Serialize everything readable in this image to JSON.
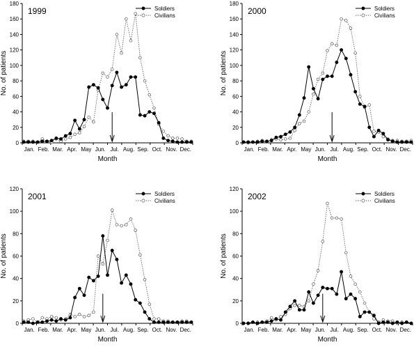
{
  "chart_data": [
    {
      "type": "line",
      "title": "1999",
      "xlabel": "Month",
      "ylabel": "No. of patients",
      "ylim": [
        0,
        180
      ],
      "yticks": [
        0,
        20,
        40,
        60,
        80,
        100,
        120,
        140,
        160,
        180
      ],
      "month_labels": [
        "Jan.",
        "Feb.",
        "Mar.",
        "Apr.",
        "May",
        "Jun.",
        "Jul.",
        "Aug.",
        "Sep.",
        "Oct.",
        "Nov.",
        "Dec."
      ],
      "grid": false,
      "legend_position": "top-right",
      "arrow_at_week": 19,
      "series": [
        {
          "name": "Soldiers",
          "style": "solid-filled",
          "values": [
            1,
            1,
            1,
            1,
            2,
            2,
            3,
            6,
            5,
            9,
            12,
            29,
            18,
            30,
            72,
            75,
            71,
            56,
            45,
            74,
            91,
            72,
            75,
            85,
            85,
            36,
            35,
            40,
            38,
            26,
            6,
            3,
            2,
            1,
            1,
            1,
            1
          ]
        },
        {
          "name": "Civilians",
          "style": "dotted-open",
          "values": [
            2,
            2,
            2,
            1,
            5,
            2,
            1,
            5,
            2,
            5,
            7,
            11,
            13,
            21,
            33,
            27,
            68,
            90,
            85,
            95,
            140,
            116,
            160,
            132,
            167,
            110,
            80,
            62,
            45,
            24,
            15,
            9,
            6,
            6,
            5,
            2,
            2
          ]
        }
      ]
    },
    {
      "type": "line",
      "title": "2000",
      "xlabel": "Month",
      "ylabel": "No. of patients",
      "ylim": [
        0,
        180
      ],
      "yticks": [
        0,
        20,
        40,
        60,
        80,
        100,
        120,
        140,
        160,
        180
      ],
      "month_labels": [
        "Jan.",
        "Feb.",
        "Mar.",
        "Apr.",
        "May",
        "Jun.",
        "Jul.",
        "Aug.",
        "Sep.",
        "Oct.",
        "Nov.",
        "Dec."
      ],
      "grid": false,
      "legend_position": "top-right",
      "arrow_at_week": 19,
      "series": [
        {
          "name": "Soldiers",
          "style": "solid-filled",
          "values": [
            1,
            1,
            1,
            1,
            2,
            2,
            3,
            7,
            8,
            11,
            14,
            20,
            36,
            58,
            98,
            70,
            57,
            82,
            86,
            86,
            104,
            120,
            109,
            88,
            66,
            50,
            47,
            20,
            8,
            16,
            12,
            4,
            2,
            1,
            1,
            1,
            1
          ]
        },
        {
          "name": "Civilians",
          "style": "dotted-open",
          "values": [
            1,
            0,
            1,
            2,
            3,
            1,
            4,
            5,
            4,
            5,
            6,
            16,
            25,
            28,
            40,
            63,
            82,
            90,
            119,
            128,
            126,
            160,
            158,
            148,
            116,
            60,
            46,
            49,
            15,
            14,
            8,
            5,
            3,
            3,
            2,
            2,
            3
          ]
        }
      ]
    },
    {
      "type": "line",
      "title": "2001",
      "xlabel": "Month",
      "ylabel": "No. of patients",
      "ylim": [
        0,
        120
      ],
      "yticks": [
        0,
        20,
        40,
        60,
        80,
        100,
        120
      ],
      "month_labels": [
        "Jan.",
        "Feb.",
        "Mar.",
        "Apr.",
        "May",
        "Jun.",
        "Jul.",
        "Aug.",
        "Sep.",
        "Oct.",
        "Nov.",
        "Dec."
      ],
      "grid": false,
      "legend_position": "top-right",
      "arrow_at_week": 17,
      "series": [
        {
          "name": "Soldiers",
          "style": "solid-filled",
          "values": [
            1,
            1,
            0,
            1,
            1,
            2,
            3,
            2,
            4,
            3,
            5,
            23,
            31,
            25,
            41,
            38,
            42,
            78,
            43,
            65,
            57,
            36,
            43,
            35,
            21,
            18,
            10,
            4,
            1,
            1,
            1,
            1,
            1,
            1,
            1,
            1,
            1
          ]
        },
        {
          "name": "Civilians",
          "style": "dotted-open",
          "values": [
            2,
            3,
            4,
            1,
            5,
            4,
            6,
            5,
            3,
            4,
            8,
            6,
            8,
            6,
            7,
            10,
            60,
            53,
            74,
            101,
            88,
            87,
            88,
            93,
            83,
            61,
            39,
            17,
            4,
            4,
            2,
            2,
            1,
            1,
            2,
            2,
            1
          ]
        }
      ]
    },
    {
      "type": "line",
      "title": "2002",
      "xlabel": "Month",
      "ylabel": "No. of patients",
      "ylim": [
        0,
        120
      ],
      "yticks": [
        0,
        20,
        40,
        60,
        80,
        100,
        120
      ],
      "month_labels": [
        "Jan.",
        "Feb.",
        "Mar.",
        "Apr.",
        "May",
        "Jun.",
        "Jul.",
        "Aug.",
        "Sep.",
        "Oct.",
        "Nov.",
        "Dec."
      ],
      "grid": false,
      "legend_position": "top-right",
      "arrow_at_week": 17,
      "series": [
        {
          "name": "Soldiers",
          "style": "solid-filled",
          "values": [
            0,
            0,
            1,
            0,
            1,
            1,
            2,
            4,
            3,
            10,
            15,
            20,
            12,
            12,
            28,
            18,
            25,
            32,
            31,
            31,
            26,
            46,
            22,
            26,
            22,
            6,
            10,
            10,
            7,
            0,
            1,
            1,
            0,
            1,
            0,
            1,
            0
          ]
        },
        {
          "name": "Civilians",
          "style": "dotted-open",
          "values": [
            0,
            0,
            1,
            1,
            1,
            2,
            5,
            3,
            6,
            8,
            13,
            16,
            16,
            15,
            20,
            35,
            47,
            73,
            107,
            94,
            94,
            93,
            63,
            42,
            35,
            28,
            18,
            10,
            4,
            1,
            3,
            2,
            2,
            0,
            1,
            1,
            0
          ]
        }
      ]
    }
  ]
}
